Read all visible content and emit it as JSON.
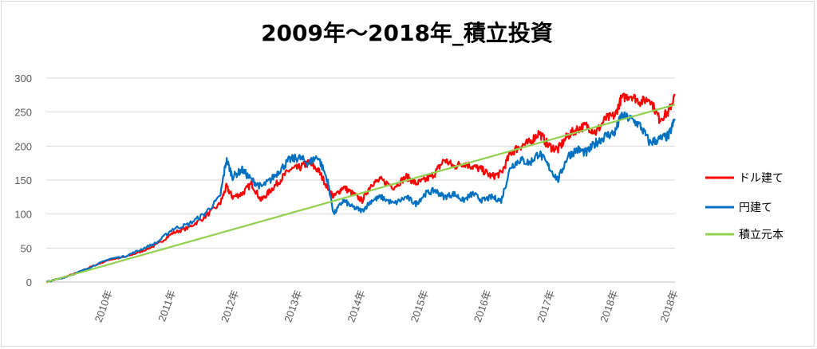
{
  "chart_data": {
    "type": "line",
    "title": "2009年～2018年_積立投資",
    "xlabel": "",
    "ylabel": "",
    "ylim": [
      0,
      300
    ],
    "yticks": [
      0,
      50,
      100,
      150,
      200,
      250,
      300
    ],
    "xlim": [
      2009.0,
      2018.95
    ],
    "xtick_labels": [
      "2010年",
      "2011年",
      "2012年",
      "2013年",
      "2014年",
      "2015年",
      "2016年",
      "2017年",
      "2018年",
      "2018年"
    ],
    "xtick_positions": [
      2010.0,
      2011.0,
      2012.0,
      2013.0,
      2014.0,
      2015.0,
      2016.0,
      2017.0,
      2018.0,
      2018.95
    ],
    "grid": true,
    "legend_position": "right",
    "series": [
      {
        "name": "ドル建て",
        "color": "#ff0000",
        "x": [
          2009.0,
          2009.25,
          2009.5,
          2009.75,
          2010.0,
          2010.25,
          2010.5,
          2010.75,
          2011.0,
          2011.25,
          2011.5,
          2011.75,
          2011.85,
          2011.95,
          2012.1,
          2012.25,
          2012.4,
          2012.55,
          2012.7,
          2012.85,
          2013.0,
          2013.15,
          2013.3,
          2013.45,
          2013.55,
          2013.7,
          2013.85,
          2014.0,
          2014.15,
          2014.3,
          2014.5,
          2014.7,
          2014.85,
          2015.0,
          2015.15,
          2015.3,
          2015.45,
          2015.6,
          2015.75,
          2015.9,
          2016.05,
          2016.2,
          2016.35,
          2016.5,
          2016.65,
          2016.8,
          2016.95,
          2017.1,
          2017.25,
          2017.4,
          2017.55,
          2017.7,
          2017.85,
          2018.0,
          2018.1,
          2018.25,
          2018.4,
          2018.55,
          2018.7,
          2018.85,
          2018.95
        ],
        "values": [
          0,
          6,
          14,
          24,
          33,
          37,
          45,
          55,
          72,
          80,
          95,
          115,
          140,
          125,
          130,
          145,
          120,
          135,
          150,
          165,
          168,
          175,
          165,
          140,
          125,
          140,
          130,
          120,
          145,
          150,
          140,
          155,
          145,
          150,
          160,
          180,
          170,
          175,
          170,
          165,
          155,
          160,
          190,
          200,
          205,
          220,
          200,
          195,
          215,
          225,
          230,
          220,
          240,
          245,
          270,
          275,
          265,
          270,
          240,
          250,
          275
        ]
      },
      {
        "name": "円建て",
        "color": "#0070c0",
        "x": [
          2009.0,
          2009.25,
          2009.5,
          2009.75,
          2010.0,
          2010.25,
          2010.5,
          2010.75,
          2011.0,
          2011.25,
          2011.5,
          2011.75,
          2011.85,
          2011.95,
          2012.1,
          2012.25,
          2012.4,
          2012.55,
          2012.7,
          2012.85,
          2013.0,
          2013.15,
          2013.3,
          2013.45,
          2013.55,
          2013.7,
          2013.85,
          2014.0,
          2014.15,
          2014.3,
          2014.5,
          2014.7,
          2014.85,
          2015.0,
          2015.15,
          2015.3,
          2015.45,
          2015.6,
          2015.75,
          2015.9,
          2016.05,
          2016.2,
          2016.35,
          2016.5,
          2016.65,
          2016.8,
          2016.95,
          2017.1,
          2017.25,
          2017.4,
          2017.55,
          2017.7,
          2017.85,
          2018.0,
          2018.1,
          2018.25,
          2018.4,
          2018.55,
          2018.7,
          2018.85,
          2018.95
        ],
        "values": [
          0,
          6,
          14,
          24,
          34,
          38,
          48,
          58,
          78,
          85,
          100,
          125,
          180,
          155,
          165,
          150,
          140,
          150,
          165,
          180,
          183,
          175,
          185,
          150,
          100,
          120,
          110,
          105,
          120,
          125,
          115,
          125,
          115,
          130,
          135,
          125,
          130,
          120,
          130,
          120,
          125,
          120,
          170,
          180,
          175,
          190,
          170,
          150,
          185,
          195,
          190,
          205,
          215,
          220,
          245,
          240,
          230,
          205,
          210,
          215,
          240
        ]
      },
      {
        "name": "積立元本",
        "color": "#92d050",
        "x": [
          2009.0,
          2018.95
        ],
        "values": [
          0,
          261
        ]
      }
    ]
  }
}
